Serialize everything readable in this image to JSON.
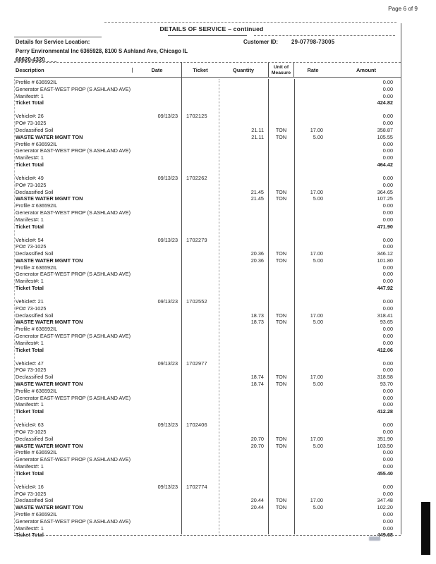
{
  "page": {
    "page_label": "Page 6 of 9"
  },
  "header": {
    "title": "DETAILS OF SERVICE – continued",
    "service_location_label": "Details for Service Location:",
    "customer_id_label": "Customer ID:",
    "customer_id": "29-07798-73005",
    "service_location_line1": "Perry Environmental Inc 6365928, 8100 S Ashland Ave, Chicago IL",
    "service_location_line2": "60620-4320"
  },
  "table": {
    "columns": {
      "description": "Description",
      "date": "Date",
      "ticket": "Ticket",
      "quantity": "Quantity",
      "uom_line1": "Unit of",
      "uom_line2": "Measure",
      "rate": "Rate",
      "amount": "Amount"
    },
    "blocks": [
      {
        "rows": [
          {
            "desc": "Profile # 636592IL",
            "amount": "0.00"
          },
          {
            "desc": "Generator EAST-WEST PROP (S ASHLAND AVE)",
            "amount": "0.00"
          },
          {
            "desc": "Manifest#: 1",
            "amount": "0.00"
          },
          {
            "desc": "Ticket Total",
            "amount": "424.82",
            "total": true
          }
        ]
      },
      {
        "rows": [
          {
            "desc": "Vehicle#: 26",
            "date": "09/13/23",
            "ticket": "1702125",
            "amount": "0.00"
          },
          {
            "desc": "PO# 73-1025",
            "amount": "0.00"
          },
          {
            "desc": "Declassified Soil",
            "qty": "21.11",
            "uom": "TON",
            "rate": "17.00",
            "amount": "358.87"
          },
          {
            "desc": "WASTE WATER MGMT TON",
            "qty": "21.11",
            "uom": "TON",
            "rate": "5.00",
            "amount": "105.55"
          },
          {
            "desc": "Profile # 636592IL",
            "amount": "0.00"
          },
          {
            "desc": "Generator EAST-WEST PROP (S ASHLAND AVE)",
            "amount": "0.00"
          },
          {
            "desc": "Manifest#: 1",
            "amount": "0.00"
          },
          {
            "desc": "Ticket Total",
            "amount": "464.42",
            "total": true
          }
        ]
      },
      {
        "rows": [
          {
            "desc": "Vehicle#: 49",
            "date": "09/13/23",
            "ticket": "1702262",
            "amount": "0.00"
          },
          {
            "desc": "PO# 73-1025",
            "amount": "0.00"
          },
          {
            "desc": "Declassified Soil",
            "qty": "21.45",
            "uom": "TON",
            "rate": "17.00",
            "amount": "364.65"
          },
          {
            "desc": "WASTE WATER MGMT TON",
            "qty": "21.45",
            "uom": "TON",
            "rate": "5.00",
            "amount": "107.25"
          },
          {
            "desc": "Profile # 636592IL",
            "amount": "0.00"
          },
          {
            "desc": "Generator EAST-WEST PROP (S ASHLAND AVE)",
            "amount": "0.00"
          },
          {
            "desc": "Manifest#: 1",
            "amount": "0.00"
          },
          {
            "desc": "Ticket Total",
            "amount": "471.90",
            "total": true
          }
        ]
      },
      {
        "rows": [
          {
            "desc": "Vehicle#: 54",
            "date": "09/13/23",
            "ticket": "1702279",
            "amount": "0.00"
          },
          {
            "desc": "PO# 73-1025",
            "amount": "0.00"
          },
          {
            "desc": "Declassified Soil",
            "qty": "20.36",
            "uom": "TON",
            "rate": "17.00",
            "amount": "346.12"
          },
          {
            "desc": "WASTE WATER MGMT TON",
            "qty": "20.36",
            "uom": "TON",
            "rate": "5.00",
            "amount": "101.80"
          },
          {
            "desc": "Profile # 636592IL",
            "amount": "0.00"
          },
          {
            "desc": "Generator EAST-WEST PROP (S ASHLAND AVE)",
            "amount": "0.00"
          },
          {
            "desc": "Manifest#: 1",
            "amount": "0.00"
          },
          {
            "desc": "Ticket Total",
            "amount": "447.92",
            "total": true
          }
        ]
      },
      {
        "rows": [
          {
            "desc": "Vehicle#: 21",
            "date": "09/13/23",
            "ticket": "1702552",
            "amount": "0.00"
          },
          {
            "desc": "PO# 73-1025",
            "amount": "0.00"
          },
          {
            "desc": "Declassified Soil",
            "qty": "18.73",
            "uom": "TON",
            "rate": "17.00",
            "amount": "318.41"
          },
          {
            "desc": "WASTE WATER MGMT TON",
            "qty": "18.73",
            "uom": "TON",
            "rate": "5.00",
            "amount": "93.65"
          },
          {
            "desc": "Profile # 636592IL",
            "amount": "0.00"
          },
          {
            "desc": "Generator EAST-WEST PROP (S ASHLAND AVE)",
            "amount": "0.00"
          },
          {
            "desc": "Manifest#: 1",
            "amount": "0.00"
          },
          {
            "desc": "Ticket Total",
            "amount": "412.06",
            "total": true
          }
        ]
      },
      {
        "rows": [
          {
            "desc": "Vehicle#: 47",
            "date": "09/13/23",
            "ticket": "1702977",
            "amount": "0.00"
          },
          {
            "desc": "PO# 73-1025",
            "amount": "0.00"
          },
          {
            "desc": "Declassified Soil",
            "qty": "18.74",
            "uom": "TON",
            "rate": "17.00",
            "amount": "318.58"
          },
          {
            "desc": "WASTE WATER MGMT TON",
            "qty": "18.74",
            "uom": "TON",
            "rate": "5.00",
            "amount": "93.70"
          },
          {
            "desc": "Profile # 636592IL",
            "amount": "0.00"
          },
          {
            "desc": "Generator EAST-WEST PROP (S ASHLAND AVE)",
            "amount": "0.00"
          },
          {
            "desc": "Manifest#: 1",
            "amount": "0.00"
          },
          {
            "desc": "Ticket Total",
            "amount": "412.28",
            "total": true
          }
        ]
      },
      {
        "rows": [
          {
            "desc": "Vehicle#: 63",
            "date": "09/13/23",
            "ticket": "1702406",
            "amount": "0.00"
          },
          {
            "desc": "PO# 73-1025",
            "amount": "0.00"
          },
          {
            "desc": "Declassified Soil",
            "qty": "20.70",
            "uom": "TON",
            "rate": "17.00",
            "amount": "351.90"
          },
          {
            "desc": "WASTE WATER MGMT TON",
            "qty": "20.70",
            "uom": "TON",
            "rate": "5.00",
            "amount": "103.50"
          },
          {
            "desc": "Profile # 636592IL",
            "amount": "0.00"
          },
          {
            "desc": "Generator EAST-WEST PROP (S ASHLAND AVE)",
            "amount": "0.00"
          },
          {
            "desc": "Manifest#: 1",
            "amount": "0.00"
          },
          {
            "desc": "Ticket Total",
            "amount": "455.40",
            "total": true
          }
        ]
      },
      {
        "rows": [
          {
            "desc": "Vehicle#: 16",
            "date": "09/13/23",
            "ticket": "1702774",
            "amount": "0.00"
          },
          {
            "desc": "PO# 73-1025",
            "amount": "0.00"
          },
          {
            "desc": "Declassified Soil",
            "qty": "20.44",
            "uom": "TON",
            "rate": "17.00",
            "amount": "347.48"
          },
          {
            "desc": "WASTE WATER MGMT TON",
            "qty": "20.44",
            "uom": "TON",
            "rate": "5.00",
            "amount": "102.20"
          },
          {
            "desc": "Profile # 636592IL",
            "amount": "0.00"
          },
          {
            "desc": "Generator EAST-WEST PROP (S ASHLAND AVE)",
            "amount": "0.00"
          },
          {
            "desc": "Manifest#: 1",
            "amount": "0.00"
          },
          {
            "desc": "Ticket Total",
            "amount": "449.68",
            "total": true
          }
        ]
      }
    ]
  }
}
